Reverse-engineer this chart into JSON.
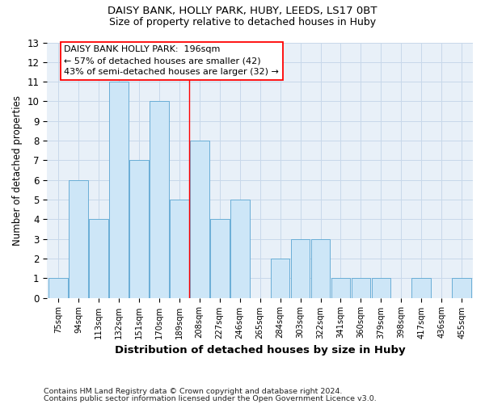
{
  "title1": "DAISY BANK, HOLLY PARK, HUBY, LEEDS, LS17 0BT",
  "title2": "Size of property relative to detached houses in Huby",
  "xlabel": "Distribution of detached houses by size in Huby",
  "ylabel": "Number of detached properties",
  "footnote1": "Contains HM Land Registry data © Crown copyright and database right 2024.",
  "footnote2": "Contains public sector information licensed under the Open Government Licence v3.0.",
  "categories": [
    "75sqm",
    "94sqm",
    "113sqm",
    "132sqm",
    "151sqm",
    "170sqm",
    "189sqm",
    "208sqm",
    "227sqm",
    "246sqm",
    "265sqm",
    "284sqm",
    "303sqm",
    "322sqm",
    "341sqm",
    "360sqm",
    "379sqm",
    "398sqm",
    "417sqm",
    "436sqm",
    "455sqm"
  ],
  "values": [
    1,
    6,
    4,
    11,
    7,
    10,
    5,
    8,
    4,
    5,
    0,
    2,
    3,
    3,
    1,
    1,
    1,
    0,
    1,
    0,
    1
  ],
  "bar_color": "#cde6f7",
  "bar_edge_color": "#6aaed6",
  "red_line_x": 6.5,
  "annotation_title": "DAISY BANK HOLLY PARK:  196sqm",
  "annotation_line1": "← 57% of detached houses are smaller (42)",
  "annotation_line2": "43% of semi-detached houses are larger (32) →",
  "ylim": [
    0,
    13
  ],
  "yticks": [
    0,
    1,
    2,
    3,
    4,
    5,
    6,
    7,
    8,
    9,
    10,
    11,
    12,
    13
  ],
  "grid_color": "#c8d8ea",
  "background_color": "#e8f0f8"
}
